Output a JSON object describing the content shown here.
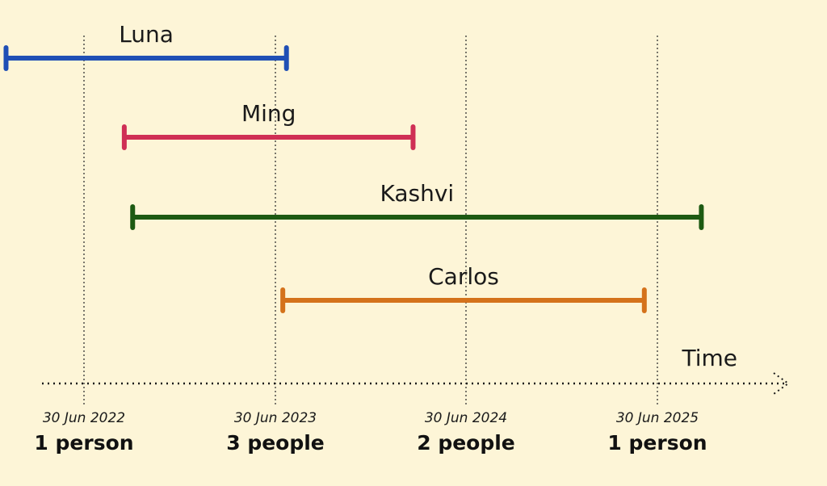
{
  "axis": {
    "title": "Time"
  },
  "markers": [
    {
      "date": "30 Jun 2022",
      "count": "1 person"
    },
    {
      "date": "30 Jun 2023",
      "count": "3 people"
    },
    {
      "date": "30 Jun 2024",
      "count": "2 people"
    },
    {
      "date": "30 Jun 2025",
      "count": "1 person"
    }
  ],
  "bars": [
    {
      "name": "Luna",
      "color": "#1f4fb5",
      "start": "2022-02-01",
      "end": "2023-07-22"
    },
    {
      "name": "Ming",
      "color": "#cf2f55",
      "start": "2022-09-15",
      "end": "2024-03-20"
    },
    {
      "name": "Kashvi",
      "color": "#1d5a12",
      "start": "2022-10-01",
      "end": "2025-09-22"
    },
    {
      "name": "Carlos",
      "color": "#d4721b",
      "start": "2023-07-15",
      "end": "2025-06-05"
    }
  ]
}
